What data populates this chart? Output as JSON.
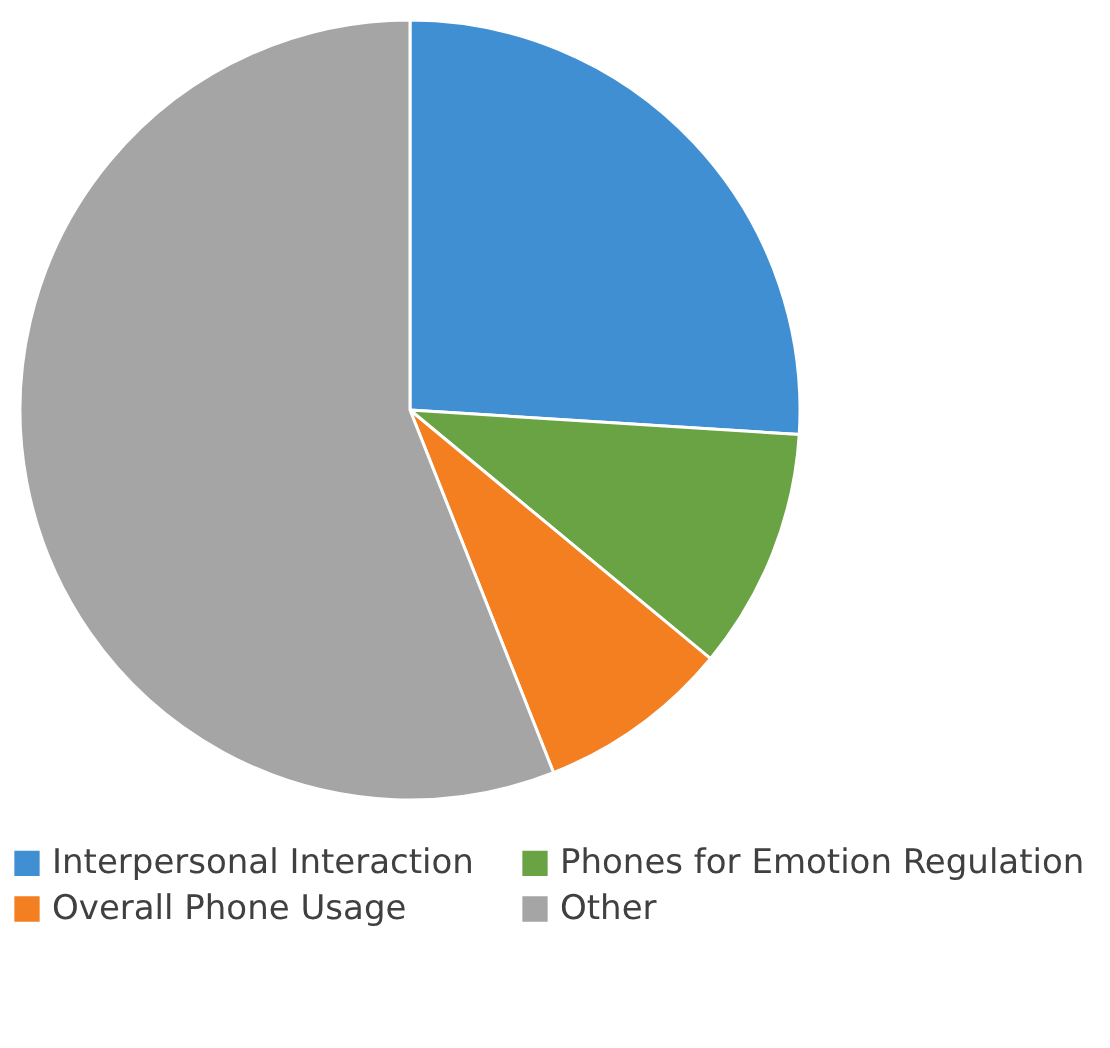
{
  "chart_data": {
    "type": "pie",
    "categories": [
      "Interpersonal Interaction",
      "Phones for Emotion Regulation",
      "Overall Phone Usage",
      "Other"
    ],
    "values": [
      26,
      10,
      8,
      56
    ],
    "colors": [
      "#3f8fd2",
      "#6aa343",
      "#f37f20",
      "#a5a5a5"
    ],
    "legend": "bottom"
  }
}
